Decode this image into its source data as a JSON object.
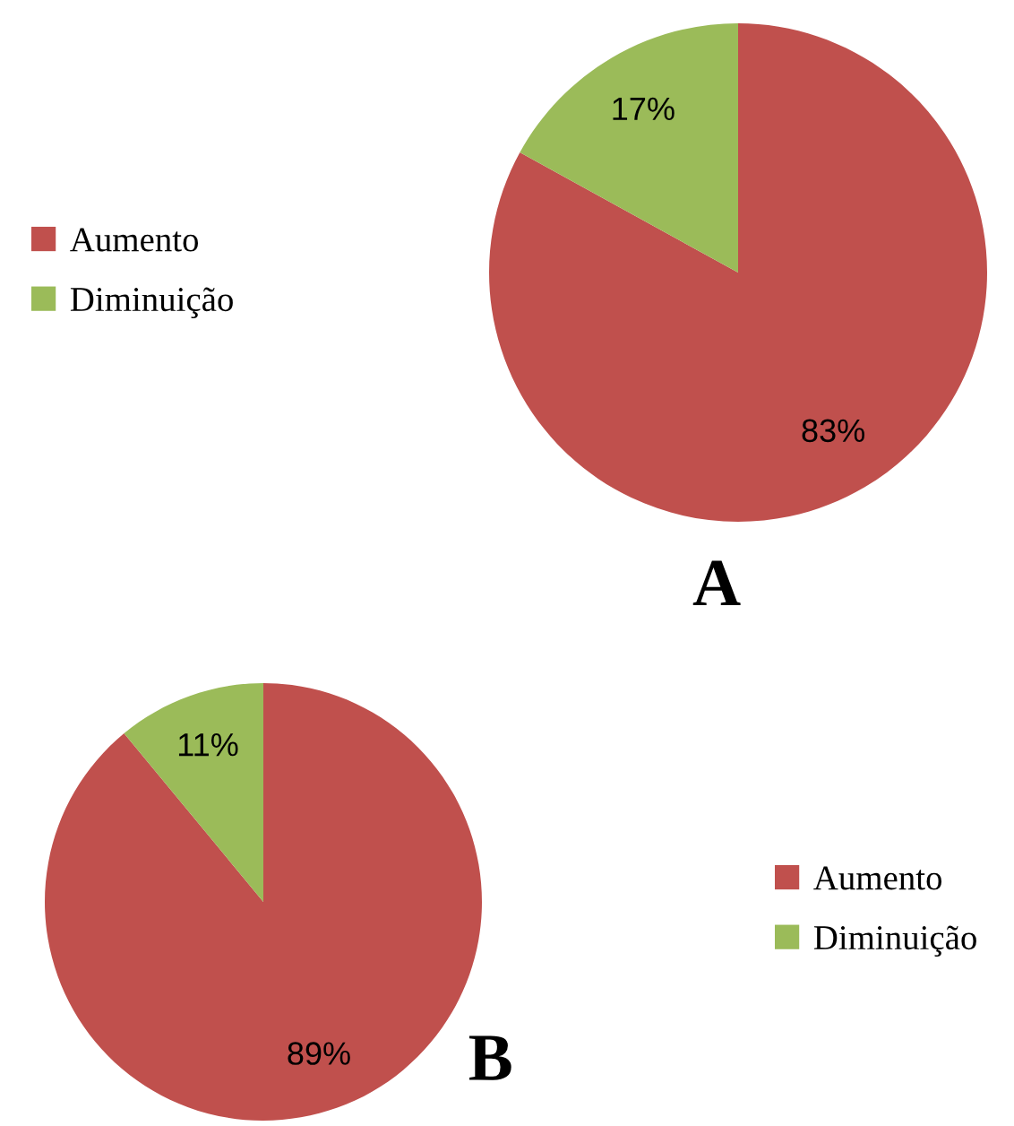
{
  "chart_data": [
    {
      "type": "pie",
      "title": "A",
      "categories": [
        "Aumento",
        "Diminuição"
      ],
      "values": [
        83,
        17
      ],
      "colors": [
        "#c0504d",
        "#9bbb59"
      ],
      "value_labels": [
        "83%",
        "17%"
      ],
      "legend": "left"
    },
    {
      "type": "pie",
      "title": "B",
      "categories": [
        "Aumento",
        "Diminuição"
      ],
      "values": [
        89,
        11
      ],
      "colors": [
        "#c0504d",
        "#9bbb59"
      ],
      "value_labels": [
        "89%",
        "11%"
      ],
      "legend": "right"
    }
  ]
}
